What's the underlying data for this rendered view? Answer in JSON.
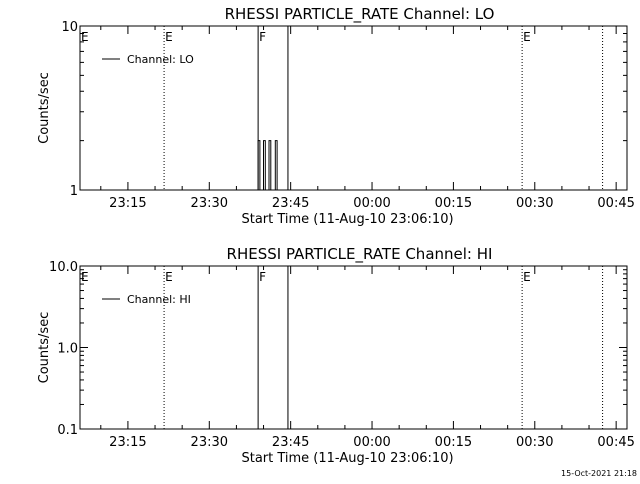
{
  "chart_data": [
    {
      "type": "line",
      "title": "RHESSI PARTICLE_RATE Channel: LO",
      "xlabel": "Start Time (11-Aug-10 23:06:10)",
      "ylabel": "Counts/sec",
      "yscale": "log",
      "ylim": [
        1,
        10
      ],
      "yticks": [
        {
          "value": 1,
          "label": "1"
        },
        {
          "value": 10,
          "label": "10"
        }
      ],
      "xlim": [
        "23:06:10",
        "00:47:00"
      ],
      "xticks": [
        "23:15",
        "23:30",
        "23:45",
        "00:00",
        "00:15",
        "00:30",
        "00:45"
      ],
      "grid": false,
      "legend_position": "top-left",
      "series": [
        {
          "name": "Channel: LO",
          "color": "#000000",
          "x": [
            "23:06:10",
            "23:39:00",
            "23:39:00",
            "23:39:20",
            "23:39:20",
            "23:40:00",
            "23:40:00",
            "23:40:20",
            "23:40:20",
            "23:41:00",
            "23:41:00",
            "23:41:20",
            "23:41:20",
            "23:42:10",
            "23:42:10",
            "23:42:30",
            "23:42:30",
            "00:47:00"
          ],
          "values": [
            1,
            1,
            2,
            2,
            1,
            1,
            2,
            2,
            1,
            1,
            2,
            2,
            1,
            1,
            2,
            2,
            1,
            1
          ]
        }
      ],
      "annotations": [
        {
          "type": "dotted-line",
          "time": "23:21:40",
          "label": "E"
        },
        {
          "type": "solid-line",
          "time": "23:39:00",
          "label": "F"
        },
        {
          "type": "solid-line",
          "time": "23:44:30",
          "label": ""
        },
        {
          "type": "dotted-line",
          "time": "00:27:40",
          "label": "E"
        },
        {
          "type": "dotted-line",
          "time": "00:42:30",
          "label": ""
        },
        {
          "type": "text",
          "time": "23:06:10",
          "label": "E"
        }
      ]
    },
    {
      "type": "line",
      "title": "RHESSI PARTICLE_RATE Channel: HI",
      "xlabel": "Start Time (11-Aug-10 23:06:10)",
      "ylabel": "Counts/sec",
      "yscale": "log",
      "ylim": [
        0.1,
        10
      ],
      "yticks": [
        {
          "value": 0.1,
          "label": "0.1"
        },
        {
          "value": 1,
          "label": "1.0"
        },
        {
          "value": 10,
          "label": "10.0"
        }
      ],
      "xlim": [
        "23:06:10",
        "00:47:00"
      ],
      "xticks": [
        "23:15",
        "23:30",
        "23:45",
        "00:00",
        "00:15",
        "00:30",
        "00:45"
      ],
      "grid": false,
      "legend_position": "top-left",
      "series": [
        {
          "name": "Channel: HI",
          "color": "#000000",
          "x": [],
          "values": []
        }
      ],
      "annotations": [
        {
          "type": "dotted-line",
          "time": "23:21:40",
          "label": "E"
        },
        {
          "type": "solid-line",
          "time": "23:39:00",
          "label": "F"
        },
        {
          "type": "solid-line",
          "time": "23:44:30",
          "label": ""
        },
        {
          "type": "dotted-line",
          "time": "00:27:40",
          "label": "E"
        },
        {
          "type": "dotted-line",
          "time": "00:42:30",
          "label": ""
        },
        {
          "type": "text",
          "time": "23:06:10",
          "label": "E"
        }
      ]
    }
  ],
  "footer": {
    "timestamp": "15-Oct-2021 21:18"
  }
}
